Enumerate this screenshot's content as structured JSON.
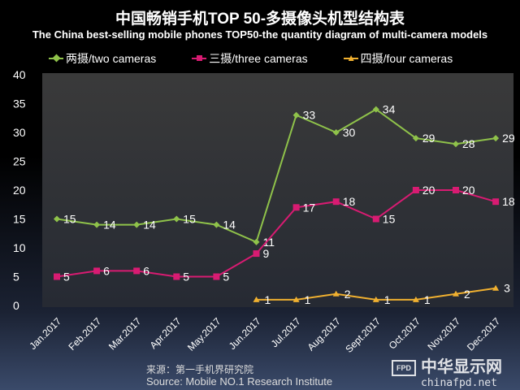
{
  "chart_data": {
    "type": "line",
    "title": "中国畅销手机TOP 50-多摄像头机型结构表",
    "subtitle": "The China best-selling mobile phones TOP50-the quantity diagram of multi-camera models",
    "categories": [
      "Jan.2017",
      "Feb.2017",
      "Mar.2017",
      "Apr.2017",
      "May.2017",
      "Jun.2017",
      "Jul.2017",
      "Aug.2017",
      "Sept.2017",
      "Oct.2017",
      "Nov.2017",
      "Dec.2017"
    ],
    "series": [
      {
        "name": "两摄/two cameras",
        "color": "#8fc24a",
        "marker": "diamond",
        "values": [
          15,
          14,
          14,
          15,
          14,
          11,
          33,
          30,
          34,
          29,
          28,
          29
        ]
      },
      {
        "name": "三摄/three cameras",
        "color": "#d81b72",
        "marker": "square",
        "values": [
          5,
          6,
          6,
          5,
          5,
          9,
          17,
          18,
          15,
          20,
          20,
          18
        ]
      },
      {
        "name": "四摄/four cameras",
        "color": "#f0b030",
        "marker": "triangle",
        "values": [
          null,
          null,
          null,
          null,
          null,
          1,
          1,
          2,
          1,
          1,
          2,
          3
        ]
      }
    ],
    "ylim": [
      0,
      40
    ],
    "yticks": [
      0,
      5,
      10,
      15,
      20,
      25,
      30,
      35,
      40
    ],
    "grid": false,
    "legend": "top",
    "xlabel": "",
    "ylabel": ""
  },
  "source": {
    "cn": "来源：第一手机界研究院",
    "en": "Source: Mobile NO.1 Research Institute"
  },
  "watermark": {
    "badge": "FPD",
    "cn": "中华显示网",
    "en": "chinafpd.net"
  }
}
